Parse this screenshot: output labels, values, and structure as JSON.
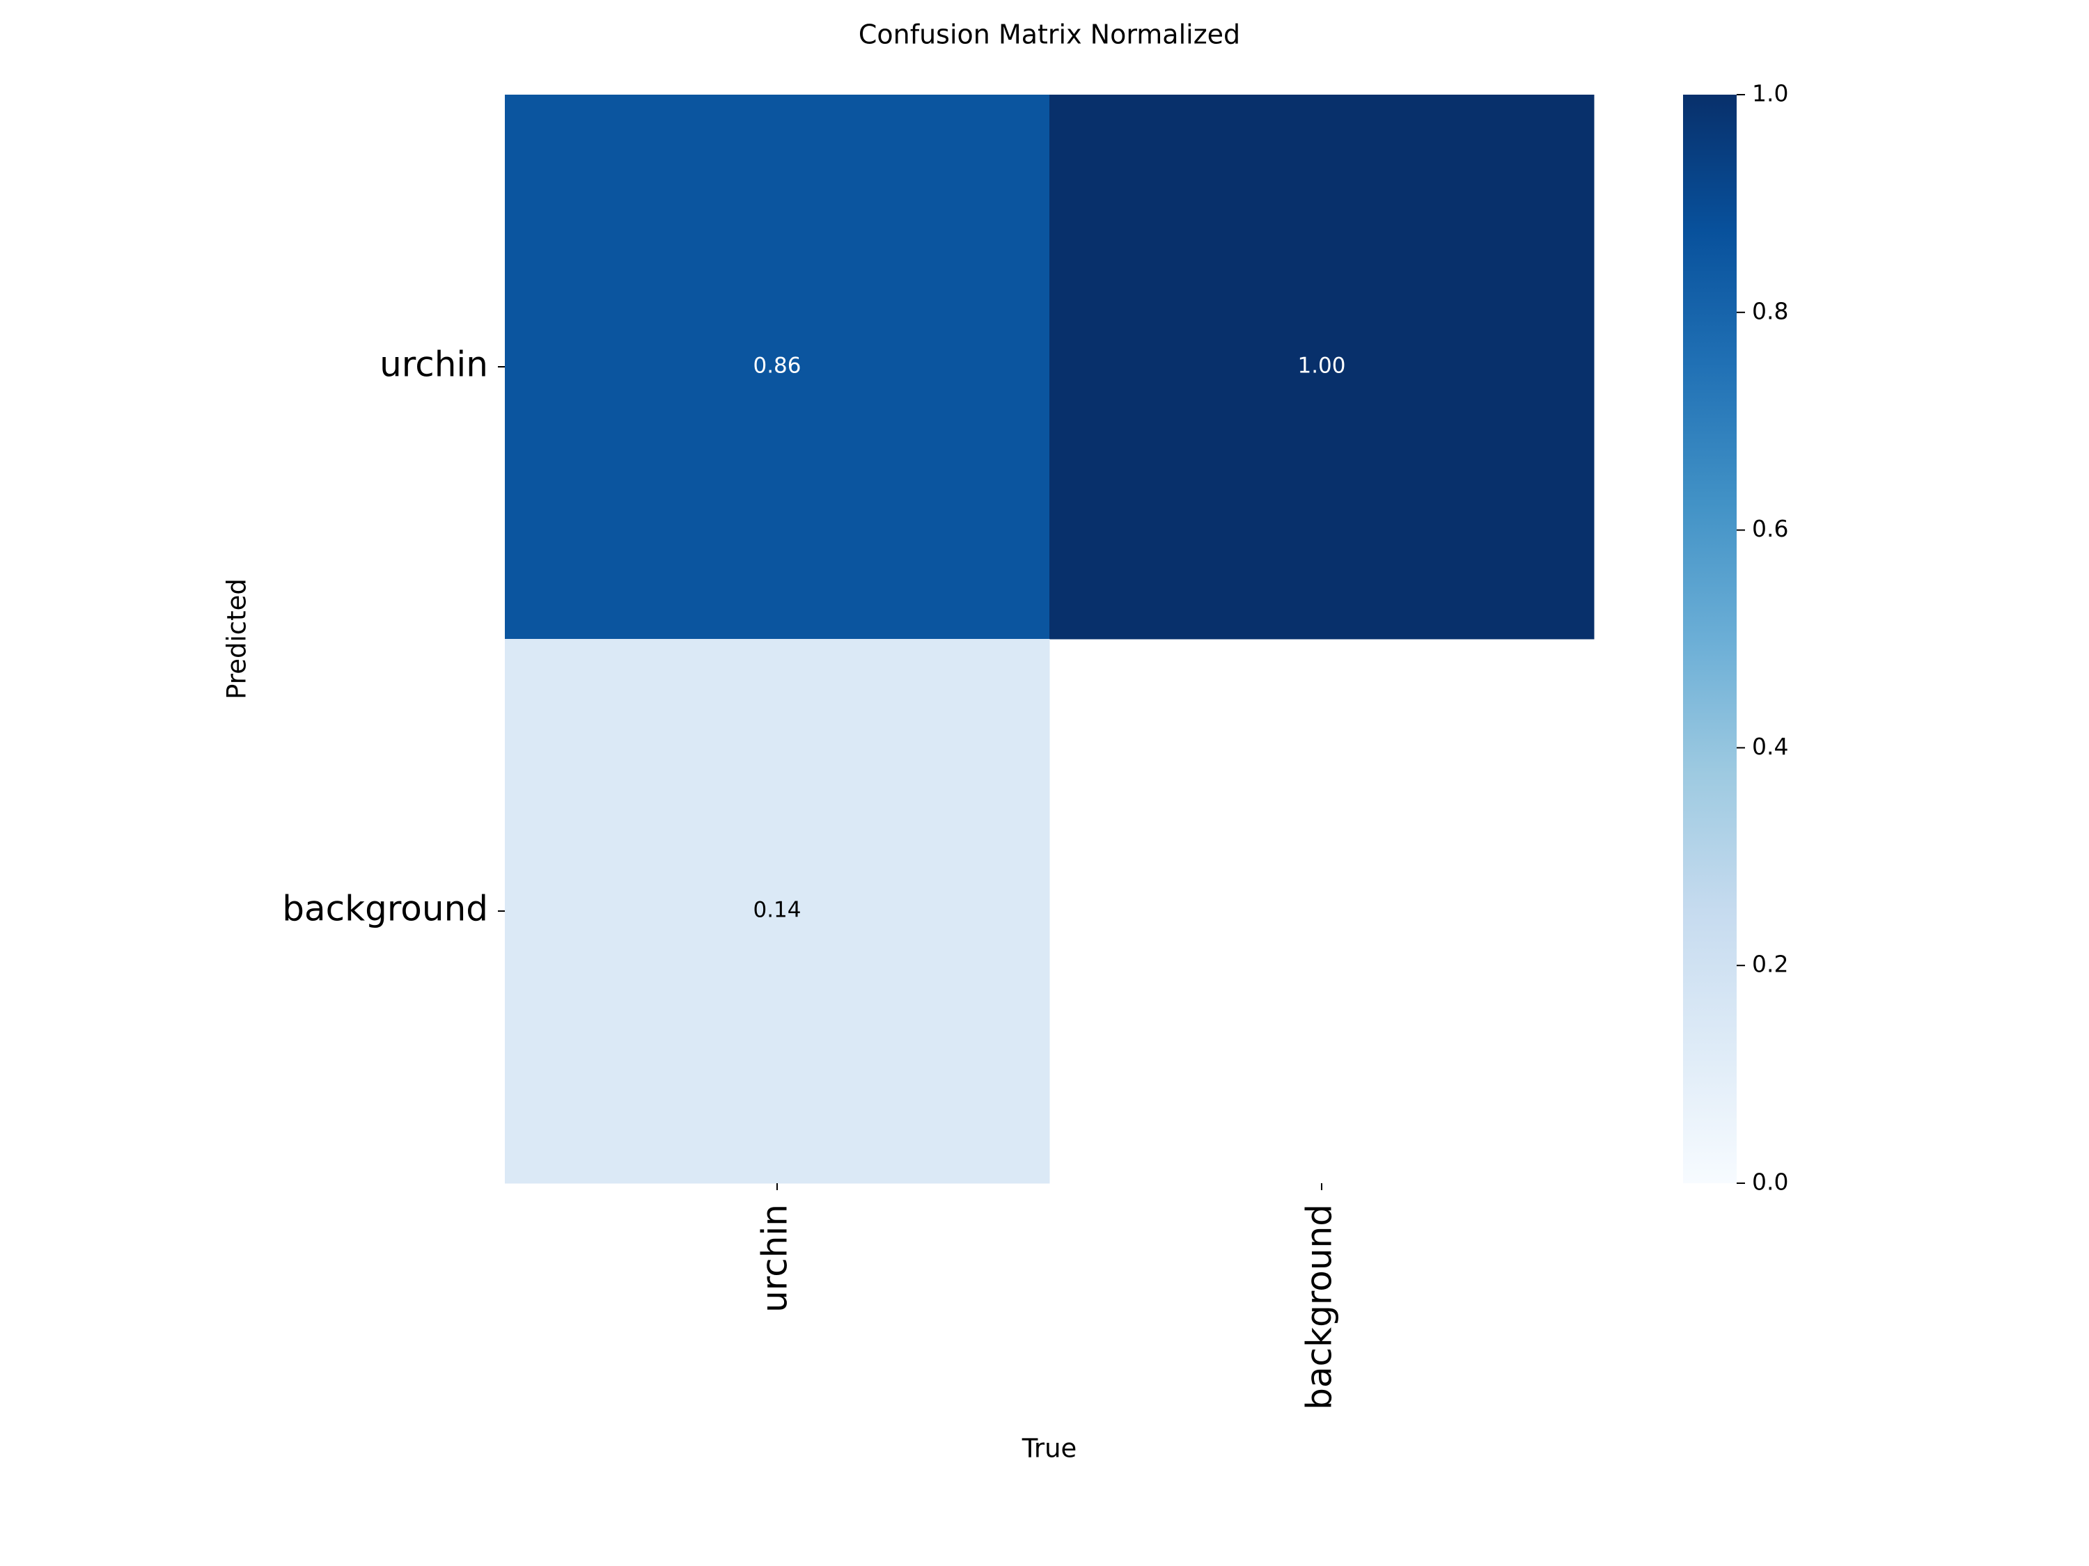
{
  "chart_data": {
    "type": "heatmap",
    "title": "Confusion Matrix Normalized",
    "x_label": "True",
    "y_label": "Predicted",
    "x_categories": [
      "urchin",
      "background"
    ],
    "y_categories": [
      "urchin",
      "background"
    ],
    "values": [
      [
        0.86,
        1.0
      ],
      [
        0.14,
        null
      ]
    ],
    "value_labels": [
      [
        "0.86",
        "1.00"
      ],
      [
        "0.14",
        null
      ]
    ],
    "colormap": "Blues",
    "zlim": [
      0,
      1
    ],
    "colorbar_ticks": [
      {
        "value": 0,
        "label": "0.0"
      },
      {
        "value": 0.2,
        "label": "0.2"
      },
      {
        "value": 0.4,
        "label": "0.4"
      },
      {
        "value": 0.6,
        "label": "0.6"
      },
      {
        "value": 0.8,
        "label": "0.8"
      },
      {
        "value": 1,
        "label": "1.0"
      }
    ]
  }
}
